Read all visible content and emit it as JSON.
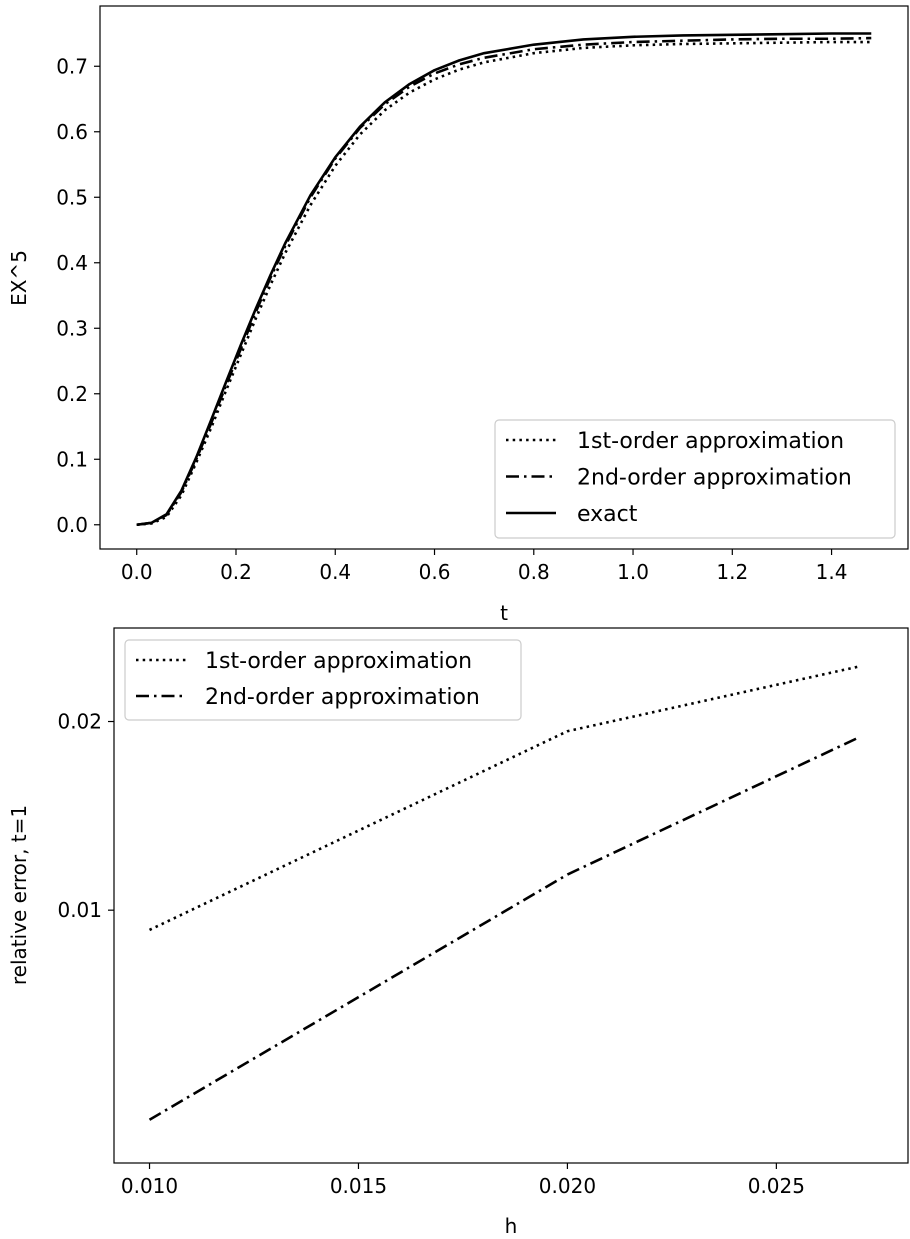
{
  "chart_data": [
    {
      "type": "line",
      "title": "",
      "xlabel": "t",
      "ylabel": "EX^5",
      "xlim": [
        -0.074,
        1.554
      ],
      "ylim": [
        -0.037,
        0.792
      ],
      "xticks": [
        0.0,
        0.2,
        0.4,
        0.6,
        0.8,
        1.0,
        1.2,
        1.4
      ],
      "xtick_labels": [
        "0.0",
        "0.2",
        "0.4",
        "0.6",
        "0.8",
        "1.0",
        "1.2",
        "1.4"
      ],
      "yticks": [
        0.0,
        0.1,
        0.2,
        0.3,
        0.4,
        0.5,
        0.6,
        0.7
      ],
      "ytick_labels": [
        "0.0",
        "0.1",
        "0.2",
        "0.3",
        "0.4",
        "0.5",
        "0.6",
        "0.7"
      ],
      "grid": false,
      "legend_position": "lower-right",
      "series": [
        {
          "name": "1st-order approximation",
          "style": "dotted",
          "color": "#000000",
          "x": [
            0.0,
            0.03,
            0.06,
            0.09,
            0.12,
            0.15,
            0.18,
            0.21,
            0.24,
            0.27,
            0.3,
            0.35,
            0.4,
            0.45,
            0.5,
            0.55,
            0.6,
            0.65,
            0.7,
            0.8,
            0.9,
            1.0,
            1.1,
            1.2,
            1.3,
            1.4,
            1.48
          ],
          "y": [
            0.0,
            0.002,
            0.012,
            0.045,
            0.095,
            0.148,
            0.205,
            0.26,
            0.315,
            0.367,
            0.416,
            0.488,
            0.548,
            0.596,
            0.633,
            0.66,
            0.68,
            0.695,
            0.706,
            0.72,
            0.728,
            0.732,
            0.734,
            0.735,
            0.736,
            0.737,
            0.737
          ]
        },
        {
          "name": "2nd-order approximation",
          "style": "dashdot",
          "color": "#000000",
          "x": [
            0.0,
            0.03,
            0.06,
            0.09,
            0.12,
            0.15,
            0.18,
            0.21,
            0.24,
            0.27,
            0.3,
            0.35,
            0.4,
            0.45,
            0.5,
            0.55,
            0.6,
            0.65,
            0.7,
            0.8,
            0.9,
            1.0,
            1.1,
            1.2,
            1.3,
            1.4,
            1.48
          ],
          "y": [
            0.0,
            0.003,
            0.015,
            0.05,
            0.1,
            0.155,
            0.213,
            0.269,
            0.325,
            0.378,
            0.427,
            0.5,
            0.559,
            0.606,
            0.642,
            0.669,
            0.689,
            0.703,
            0.713,
            0.726,
            0.733,
            0.737,
            0.739,
            0.741,
            0.742,
            0.742,
            0.743
          ]
        },
        {
          "name": "exact",
          "style": "solid",
          "color": "#000000",
          "x": [
            0.0,
            0.03,
            0.06,
            0.09,
            0.12,
            0.15,
            0.18,
            0.21,
            0.24,
            0.27,
            0.3,
            0.35,
            0.4,
            0.45,
            0.5,
            0.55,
            0.6,
            0.65,
            0.7,
            0.8,
            0.9,
            1.0,
            1.1,
            1.2,
            1.3,
            1.4,
            1.48
          ],
          "y": [
            0.0,
            0.003,
            0.016,
            0.052,
            0.103,
            0.16,
            0.218,
            0.275,
            0.33,
            0.382,
            0.431,
            0.503,
            0.561,
            0.608,
            0.645,
            0.673,
            0.694,
            0.709,
            0.72,
            0.733,
            0.741,
            0.745,
            0.747,
            0.748,
            0.749,
            0.75,
            0.75
          ]
        }
      ]
    },
    {
      "type": "line",
      "title": "",
      "xlabel": "h",
      "ylabel": "relative error, t=1",
      "xscale": "linear",
      "yscale": "log",
      "xlim": [
        0.00915,
        0.02815
      ],
      "ylim": [
        0.00395,
        0.0282
      ],
      "xticks": [
        0.01,
        0.015,
        0.02,
        0.025
      ],
      "xtick_labels": [
        "0.010",
        "0.015",
        "0.020",
        "0.025"
      ],
      "yticks": [
        0.01,
        0.02
      ],
      "ytick_labels": [
        "0.01",
        "0.02"
      ],
      "grid": false,
      "legend_position": "upper-left",
      "series": [
        {
          "name": "1st-order approximation",
          "style": "dotted",
          "color": "#000000",
          "x": [
            0.01,
            0.02,
            0.027
          ],
          "y": [
            0.0093,
            0.0193,
            0.0245
          ]
        },
        {
          "name": "2nd-order approximation",
          "style": "dashdot",
          "color": "#000000",
          "x": [
            0.01,
            0.02,
            0.027
          ],
          "y": [
            0.00463,
            0.0114,
            0.0189
          ]
        }
      ]
    }
  ]
}
